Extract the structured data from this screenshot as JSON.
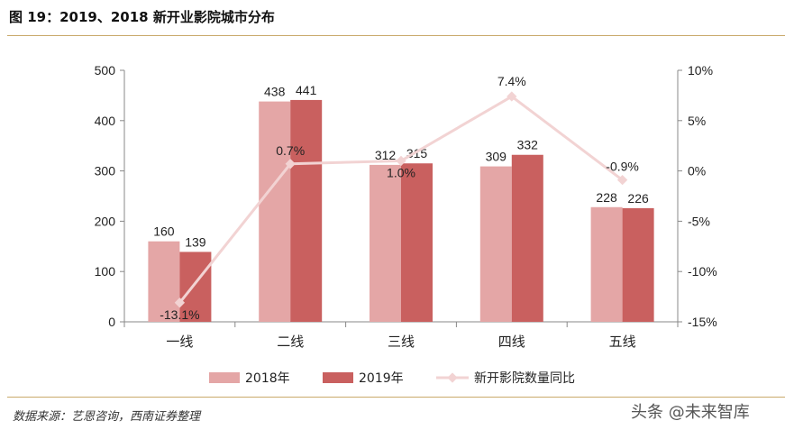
{
  "header": {
    "title": "图 19：2019、2018 新开业影院城市分布"
  },
  "footer": {
    "source": "数据来源：艺恩咨询，西南证券整理",
    "watermark": "头条 @未来智库"
  },
  "colors": {
    "bar2018": "#e4a6a6",
    "bar2019": "#c9605f",
    "line": "#f2d3d3",
    "axis": "#888888"
  },
  "chart_data": {
    "type": "bar",
    "categories": [
      "一线",
      "二线",
      "三线",
      "四线",
      "五线"
    ],
    "series": [
      {
        "name": "2018年",
        "type": "bar",
        "axis": "left",
        "values": [
          160,
          438,
          312,
          309,
          228
        ],
        "labels": [
          "160",
          "438",
          "312",
          "309",
          "228"
        ]
      },
      {
        "name": "2019年",
        "type": "bar",
        "axis": "left",
        "values": [
          139,
          441,
          315,
          332,
          226
        ],
        "labels": [
          "139",
          "441",
          "315",
          "332",
          "226"
        ]
      },
      {
        "name": "新开影院数量同比",
        "type": "line",
        "axis": "right",
        "values": [
          -13.1,
          0.7,
          1.0,
          7.4,
          -0.9
        ],
        "labels": [
          "-13.1%",
          "0.7%",
          "1.0%",
          "7.4%",
          "-0.9%"
        ]
      }
    ],
    "y_left": {
      "ylim": [
        0,
        500
      ],
      "ticks": [
        "0",
        "100",
        "200",
        "300",
        "400",
        "500"
      ]
    },
    "y_right": {
      "ylim": [
        -15,
        10
      ],
      "ticks": [
        "-15%",
        "-10%",
        "-5%",
        "0%",
        "5%",
        "10%"
      ]
    },
    "legend": {
      "placement": "bottom"
    }
  }
}
